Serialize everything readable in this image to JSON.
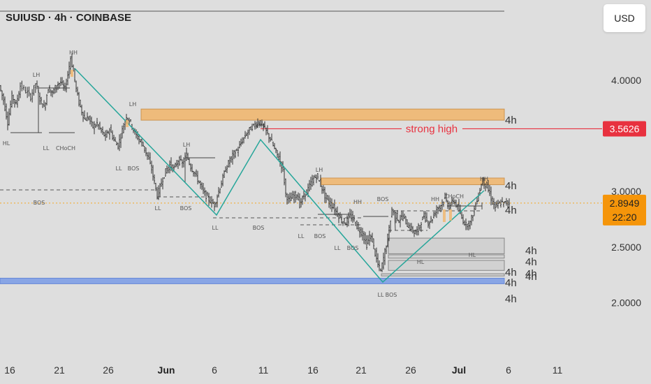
{
  "chart_data": {
    "type": "candlestick",
    "title": "SUIUSD · 4h · COINBASE",
    "currency_button": "USD",
    "y_ticks": [
      "4.0000",
      "3.0000",
      "2.5000",
      "2.0000"
    ],
    "ylim": [
      1.52,
      4.72
    ],
    "x_ticks": [
      {
        "label": "16",
        "bold": false
      },
      {
        "label": "21",
        "bold": false
      },
      {
        "label": "26",
        "bold": false
      },
      {
        "label": "Jun",
        "bold": true
      },
      {
        "label": "6",
        "bold": false
      },
      {
        "label": "11",
        "bold": false
      },
      {
        "label": "16",
        "bold": false
      },
      {
        "label": "21",
        "bold": false
      },
      {
        "label": "26",
        "bold": false
      },
      {
        "label": "Jul",
        "bold": true
      },
      {
        "label": "6",
        "bold": false
      },
      {
        "label": "11",
        "bold": false
      }
    ],
    "price_labels": {
      "strong_high": "3.5626",
      "current": "2.8949",
      "countdown": "22:20"
    },
    "annotations": {
      "strong_high_text": "strong high"
    },
    "zones": [
      {
        "name": "supply-zone-upper",
        "top": 3.74,
        "bottom": 3.64,
        "color": "#f1b56a",
        "label": "4h"
      },
      {
        "name": "supply-zone-lower",
        "top": 3.12,
        "bottom": 3.06,
        "color": "#f1b56a",
        "label": "4h"
      },
      {
        "name": "demand-zone-1",
        "top": 2.58,
        "bottom": 2.44,
        "color": "#cfcfcf",
        "label": "4h"
      },
      {
        "name": "demand-zone-2",
        "top": 2.43,
        "bottom": 2.4,
        "color": "#cfcfcf",
        "label": "4h"
      },
      {
        "name": "demand-zone-3",
        "top": 2.38,
        "bottom": 2.29,
        "color": "#cfcfcf",
        "label": "4h"
      },
      {
        "name": "demand-zone-4",
        "top": 2.26,
        "bottom": 2.24,
        "color": "#cfcfcf",
        "label": "4h"
      },
      {
        "name": "support-band",
        "top": 2.22,
        "bottom": 2.17,
        "color": "#7f9fe6",
        "label": "4h"
      }
    ],
    "structure_labels": [
      "HH",
      "LH",
      "LH",
      "HL",
      "LL",
      "CHoCH",
      "LL",
      "BOS",
      "LH",
      "LL",
      "BOS",
      "HH",
      "LL",
      "BOS",
      "BOS",
      "LH",
      "LL",
      "BOS",
      "LL",
      "BOS",
      "HH",
      "BOS",
      "HH",
      "CHoCH",
      "HH",
      "HL",
      "HL",
      "LL",
      "BOS",
      "4h"
    ],
    "price_path": [
      [
        0,
        3.95
      ],
      [
        6,
        3.82
      ],
      [
        12,
        3.62
      ],
      [
        18,
        3.86
      ],
      [
        24,
        3.78
      ],
      [
        30,
        3.95
      ],
      [
        38,
        3.9
      ],
      [
        45,
        3.85
      ],
      [
        52,
        3.97
      ],
      [
        58,
        3.83
      ],
      [
        64,
        3.75
      ],
      [
        70,
        3.93
      ],
      [
        76,
        3.88
      ],
      [
        82,
        3.96
      ],
      [
        88,
        3.98
      ],
      [
        94,
        3.92
      ],
      [
        98,
        4.05
      ],
      [
        102,
        4.2
      ],
      [
        106,
        4.08
      ],
      [
        110,
        3.92
      ],
      [
        114,
        3.8
      ],
      [
        118,
        3.72
      ],
      [
        122,
        3.65
      ],
      [
        128,
        3.66
      ],
      [
        134,
        3.58
      ],
      [
        140,
        3.61
      ],
      [
        146,
        3.54
      ],
      [
        152,
        3.49
      ],
      [
        158,
        3.56
      ],
      [
        164,
        3.46
      ],
      [
        170,
        3.41
      ],
      [
        176,
        3.55
      ],
      [
        182,
        3.68
      ],
      [
        188,
        3.62
      ],
      [
        194,
        3.52
      ],
      [
        200,
        3.47
      ],
      [
        206,
        3.41
      ],
      [
        212,
        3.32
      ],
      [
        218,
        3.2
      ],
      [
        222,
        3.08
      ],
      [
        226,
        2.96
      ],
      [
        232,
        3.08
      ],
      [
        238,
        3.18
      ],
      [
        244,
        3.24
      ],
      [
        250,
        3.2
      ],
      [
        256,
        3.28
      ],
      [
        262,
        3.25
      ],
      [
        268,
        3.33
      ],
      [
        274,
        3.22
      ],
      [
        280,
        3.16
      ],
      [
        286,
        3.08
      ],
      [
        292,
        3.0
      ],
      [
        298,
        2.94
      ],
      [
        304,
        2.9
      ],
      [
        308,
        2.88
      ],
      [
        312,
        2.96
      ],
      [
        318,
        3.08
      ],
      [
        324,
        3.2
      ],
      [
        330,
        3.28
      ],
      [
        336,
        3.34
      ],
      [
        342,
        3.38
      ],
      [
        348,
        3.46
      ],
      [
        354,
        3.52
      ],
      [
        360,
        3.57
      ],
      [
        366,
        3.6
      ],
      [
        372,
        3.63
      ],
      [
        376,
        3.6
      ],
      [
        382,
        3.54
      ],
      [
        388,
        3.47
      ],
      [
        394,
        3.38
      ],
      [
        400,
        3.3
      ],
      [
        406,
        3.2
      ],
      [
        410,
        2.98
      ],
      [
        414,
        2.92
      ],
      [
        420,
        2.95
      ],
      [
        426,
        2.98
      ],
      [
        430,
        2.88
      ],
      [
        436,
        2.96
      ],
      [
        442,
        3.02
      ],
      [
        448,
        3.1
      ],
      [
        454,
        3.14
      ],
      [
        460,
        3.06
      ],
      [
        466,
        2.96
      ],
      [
        472,
        2.9
      ],
      [
        478,
        2.86
      ],
      [
        484,
        2.8
      ],
      [
        490,
        2.74
      ],
      [
        496,
        2.72
      ],
      [
        502,
        2.78
      ],
      [
        508,
        2.74
      ],
      [
        514,
        2.66
      ],
      [
        520,
        2.62
      ],
      [
        526,
        2.52
      ],
      [
        530,
        2.6
      ],
      [
        534,
        2.56
      ],
      [
        538,
        2.44
      ],
      [
        542,
        2.34
      ],
      [
        546,
        2.28
      ],
      [
        550,
        2.4
      ],
      [
        554,
        2.52
      ],
      [
        558,
        2.66
      ],
      [
        562,
        2.84
      ],
      [
        566,
        2.8
      ],
      [
        572,
        2.74
      ],
      [
        578,
        2.78
      ],
      [
        584,
        2.7
      ],
      [
        590,
        2.66
      ],
      [
        596,
        2.62
      ],
      [
        602,
        2.7
      ],
      [
        608,
        2.78
      ],
      [
        614,
        2.72
      ],
      [
        620,
        2.76
      ],
      [
        626,
        2.84
      ],
      [
        632,
        2.88
      ],
      [
        638,
        2.94
      ],
      [
        644,
        2.86
      ],
      [
        650,
        2.92
      ],
      [
        656,
        2.86
      ],
      [
        662,
        2.76
      ],
      [
        668,
        2.7
      ],
      [
        674,
        2.72
      ],
      [
        680,
        2.84
      ],
      [
        686,
        2.98
      ],
      [
        692,
        3.1
      ],
      [
        698,
        3.04
      ],
      [
        702,
        2.98
      ],
      [
        706,
        2.9
      ],
      [
        710,
        2.86
      ],
      [
        714,
        2.88
      ],
      [
        718,
        2.9
      ],
      [
        722,
        2.89
      ],
      [
        726,
        2.9
      ],
      [
        730,
        2.895
      ]
    ]
  }
}
